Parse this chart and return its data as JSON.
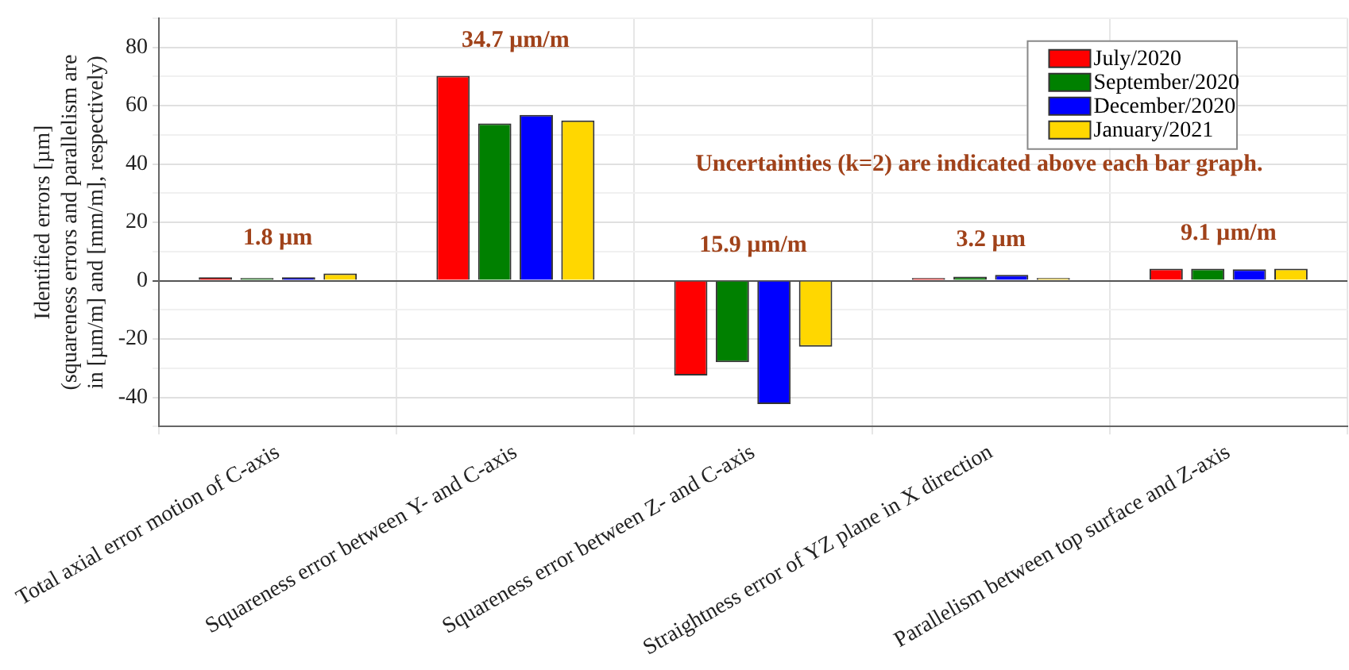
{
  "chart_data": {
    "type": "bar",
    "ylabel": "Identified errors [µm]\n(squareness errors and parallelism are\nin [µm/m] and [mm/m], respectively)",
    "categories": [
      "Total axial error motion of C-axis",
      "Squareness error between Y- and C-axis",
      "Squareness error between Z- and C-axis",
      "Straightness error of YZ plane in X direction",
      "Parallelism between top surface and Z-axis"
    ],
    "series": [
      {
        "name": "July/2020",
        "color": "#ff0000",
        "values": [
          1.2,
          70.2,
          -32.5,
          0.9,
          4.1
        ]
      },
      {
        "name": "September/2020",
        "color": "#008000",
        "values": [
          0.9,
          53.9,
          -27.9,
          1.4,
          4.1
        ]
      },
      {
        "name": "December/2020",
        "color": "#0000ff",
        "values": [
          1.2,
          56.8,
          -42.3,
          2.0,
          3.9
        ]
      },
      {
        "name": "January/2021",
        "color": "#ffd700",
        "values": [
          2.5,
          54.9,
          -22.6,
          0.9,
          4.1
        ]
      }
    ],
    "ylim": [
      -50,
      90
    ],
    "yticks": [
      {
        "value": -50,
        "label": null
      },
      -40,
      {
        "value": -30,
        "label": null
      },
      -20,
      {
        "value": -10,
        "label": null
      },
      0,
      {
        "value": 10,
        "label": null
      },
      20,
      {
        "value": 30,
        "label": null
      },
      40,
      {
        "value": 50,
        "label": null
      },
      60,
      {
        "value": 70,
        "label": null
      },
      80,
      {
        "value": 90,
        "label": null
      }
    ],
    "grid": true,
    "legend": "top right",
    "annotations": [
      "1.8 µm",
      "34.7 µm/m",
      "15.9 µm/m",
      "3.2 µm",
      "9.1 µm/m",
      "Uncertainties (k=2) are indicated above each bar graph."
    ]
  }
}
